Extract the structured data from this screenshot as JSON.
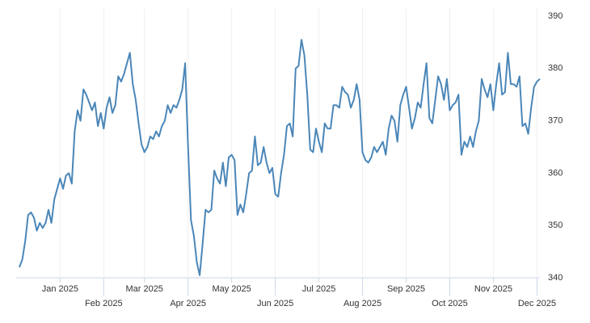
{
  "chart_data": {
    "type": "line",
    "color": "#4a86b8",
    "categories": [
      null,
      null,
      null,
      null,
      null,
      null,
      null,
      null,
      null,
      null,
      null,
      null,
      null,
      null,
      "Jan 2025",
      null,
      null,
      null,
      null,
      null,
      null,
      null,
      null,
      null,
      null,
      null,
      null,
      null,
      null,
      "Feb 2025",
      null,
      null,
      null,
      null,
      null,
      null,
      null,
      null,
      null,
      null,
      null,
      null,
      null,
      "Mar 2025",
      null,
      null,
      null,
      null,
      null,
      null,
      null,
      null,
      null,
      null,
      null,
      null,
      null,
      null,
      "Apr 2025",
      null,
      null,
      null,
      null,
      null,
      null,
      null,
      null,
      null,
      null,
      null,
      null,
      null,
      null,
      "May 2025",
      null,
      null,
      null,
      null,
      null,
      null,
      null,
      null,
      null,
      null,
      null,
      null,
      null,
      null,
      "Jun 2025",
      null,
      null,
      null,
      null,
      null,
      null,
      null,
      null,
      null,
      null,
      null,
      null,
      null,
      null,
      "Jul 2025",
      null,
      null,
      null,
      null,
      null,
      null,
      null,
      null,
      null,
      null,
      null,
      null,
      null,
      null,
      "Aug 2025",
      null,
      null,
      null,
      null,
      null,
      null,
      null,
      null,
      null,
      null,
      null,
      null,
      null,
      null,
      "Sep 2025",
      null,
      null,
      null,
      null,
      null,
      null,
      null,
      null,
      null,
      null,
      null,
      null,
      null,
      null,
      "Oct 2025",
      null,
      null,
      null,
      null,
      null,
      null,
      null,
      null,
      null,
      null,
      null,
      null,
      null,
      null,
      "Nov 2025",
      null,
      null,
      null,
      null,
      null,
      null,
      null,
      null,
      null,
      null,
      null,
      null,
      null,
      null,
      "Dec 2025",
      null
    ],
    "values": [
      342,
      343.5,
      347,
      352,
      352.5,
      351.5,
      349,
      350.5,
      349.5,
      350.5,
      353,
      350.5,
      355,
      357,
      359,
      357,
      359.5,
      360,
      358,
      368,
      372,
      370,
      376,
      375,
      373.5,
      372,
      373.5,
      369,
      371.5,
      368.5,
      372.5,
      374.5,
      371.5,
      373,
      378.5,
      377.5,
      379,
      381,
      383,
      377,
      374,
      369.5,
      365.5,
      364,
      365,
      367,
      366.5,
      368,
      367,
      369,
      370,
      373,
      371.5,
      373,
      372.5,
      374,
      376,
      381,
      365,
      351,
      348,
      343,
      340.5,
      346.5,
      353,
      352.5,
      353,
      360.5,
      359,
      358,
      362,
      357.5,
      363,
      363.5,
      362.5,
      352,
      354,
      352.5,
      356,
      360,
      360.5,
      367,
      361.5,
      362,
      365,
      362,
      360,
      361,
      356,
      355.5,
      360,
      363.5,
      369,
      369.5,
      367,
      380,
      380.5,
      385.5,
      382.5,
      375,
      364.5,
      364,
      368.5,
      366,
      364,
      369.5,
      368.5,
      368.5,
      373,
      373,
      372.5,
      376.5,
      375.5,
      375,
      372.5,
      374,
      377,
      374,
      364,
      362.5,
      362,
      363,
      365,
      364,
      365,
      366,
      363.5,
      368.5,
      371,
      370,
      366,
      373,
      375,
      376.5,
      372.5,
      368.5,
      370.5,
      373.5,
      372.5,
      377,
      381,
      370.5,
      369.5,
      374,
      378.5,
      377,
      374,
      378,
      372,
      373,
      373.5,
      375,
      363.5,
      366,
      365,
      367,
      365,
      368,
      370,
      378,
      376,
      374.5,
      377,
      372,
      377,
      381,
      375,
      375.5,
      383,
      377,
      377,
      376.5,
      378.5,
      369,
      369.5,
      367.5,
      372.5,
      376.5,
      377.5,
      378
    ],
    "ylim": [
      340,
      390
    ],
    "yticks": [
      340,
      350,
      360,
      370,
      380,
      390
    ]
  }
}
